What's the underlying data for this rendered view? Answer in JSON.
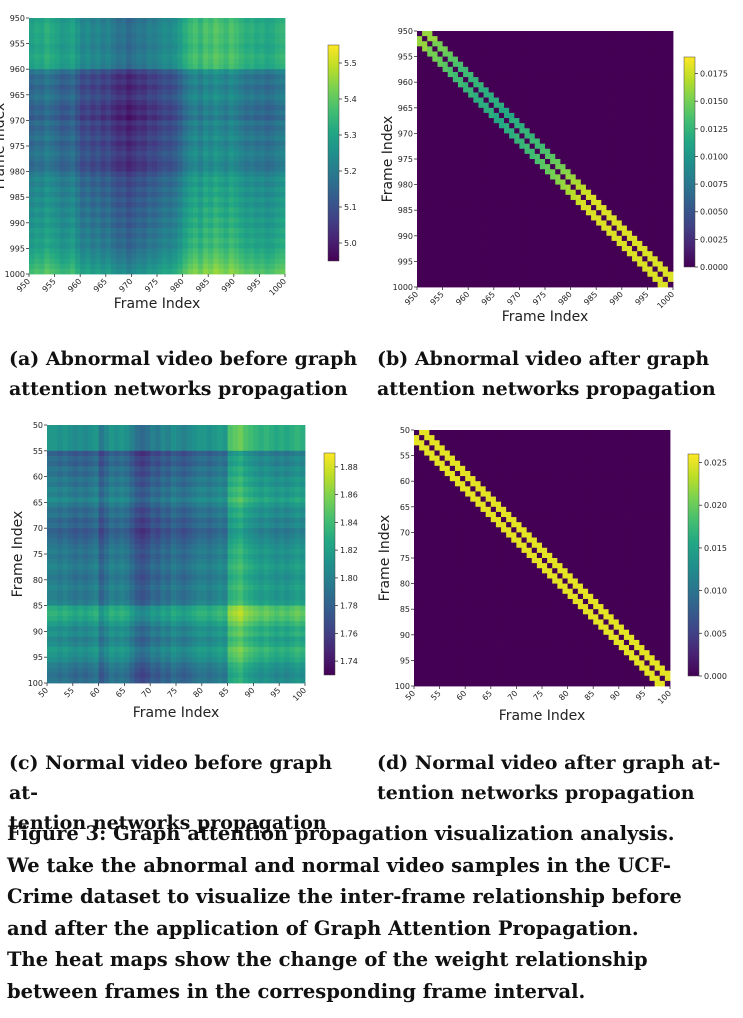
{
  "chart_data": [
    {
      "id": "a",
      "type": "heatmap",
      "xlabel": "Frame Index",
      "ylabel": "Frame Index",
      "range": [
        950,
        1000
      ],
      "x_ticks": [
        "950",
        "955",
        "960",
        "965",
        "970",
        "975",
        "980",
        "985",
        "990",
        "995",
        "1000"
      ],
      "y_ticks": [
        "950",
        "955",
        "960",
        "965",
        "970",
        "975",
        "980",
        "985",
        "990",
        "995",
        "1000"
      ],
      "colorbar": {
        "min": 4.95,
        "max": 5.55,
        "ticks": [
          "5.0",
          "5.1",
          "5.2",
          "5.3",
          "5.4",
          "5.5"
        ],
        "tick_values": [
          5.0,
          5.1,
          5.2,
          5.3,
          5.4,
          5.5
        ]
      },
      "pattern": "dense-striped",
      "row_profile": [
        5.3,
        5.33,
        5.34,
        5.32,
        5.33,
        5.3,
        5.32,
        5.35,
        5.33,
        5.31,
        5.1,
        5.02,
        5.06,
        5.0,
        5.04,
        5.08,
        5.03,
        4.98,
        5.02,
        4.96,
        5.05,
        5.0,
        5.04,
        5.08,
        5.02,
        5.06,
        5.1,
        5.07,
        5.03,
        5.05,
        5.12,
        5.18,
        5.14,
        5.2,
        5.16,
        5.22,
        5.18,
        5.24,
        5.2,
        5.26,
        5.22,
        5.28,
        5.25,
        5.3,
        5.27,
        5.32,
        5.35,
        5.38,
        5.42,
        5.46
      ],
      "col_profile": [
        5.26,
        5.3,
        5.28,
        5.34,
        5.3,
        5.27,
        5.22,
        5.24,
        5.28,
        5.2,
        5.12,
        5.16,
        5.1,
        5.14,
        5.08,
        5.12,
        5.06,
        5.02,
        5.04,
        4.98,
        5.02,
        5.06,
        5.04,
        5.1,
        5.08,
        5.12,
        5.16,
        5.14,
        5.18,
        5.24,
        5.32,
        5.38,
        5.42,
        5.36,
        5.44,
        5.4,
        5.46,
        5.42,
        5.38,
        5.44,
        5.4,
        5.36,
        5.32,
        5.34,
        5.3,
        5.32,
        5.28,
        5.3,
        5.34,
        5.36
      ]
    },
    {
      "id": "b",
      "type": "heatmap",
      "xlabel": "Frame Index",
      "ylabel": "Frame Index",
      "range": [
        950,
        1000
      ],
      "x_ticks": [
        "950",
        "955",
        "960",
        "965",
        "970",
        "975",
        "980",
        "985",
        "990",
        "995",
        "1000"
      ],
      "y_ticks": [
        "950",
        "955",
        "960",
        "965",
        "970",
        "975",
        "980",
        "985",
        "990",
        "995",
        "1000"
      ],
      "colorbar": {
        "min": 0,
        "max": 0.019,
        "ticks": [
          "0.0000",
          "0.0025",
          "0.0050",
          "0.0075",
          "0.0100",
          "0.0125",
          "0.0150",
          "0.0175"
        ],
        "tick_values": [
          0,
          0.0025,
          0.005,
          0.0075,
          0.01,
          0.0125,
          0.015,
          0.0175
        ]
      },
      "pattern": "band",
      "band_halfwidth": 2,
      "band_values": [
        0.016,
        0.016,
        0.015,
        0.015,
        0.0145,
        0.014,
        0.0135,
        0.013,
        0.013,
        0.0125,
        0.0125,
        0.012,
        0.012,
        0.012,
        0.012,
        0.0115,
        0.0115,
        0.012,
        0.012,
        0.0125,
        0.0125,
        0.013,
        0.013,
        0.0135,
        0.014,
        0.0145,
        0.015,
        0.0155,
        0.016,
        0.0165,
        0.017,
        0.0175,
        0.018,
        0.018,
        0.018,
        0.018,
        0.018,
        0.018,
        0.018,
        0.018,
        0.018,
        0.018,
        0.018,
        0.018,
        0.018,
        0.018,
        0.018,
        0.018,
        0.018,
        0.018
      ]
    },
    {
      "id": "c",
      "type": "heatmap",
      "xlabel": "Frame Index",
      "ylabel": "Frame Index",
      "range": [
        50,
        100
      ],
      "x_ticks": [
        "50",
        "55",
        "60",
        "65",
        "70",
        "75",
        "80",
        "85",
        "90",
        "95",
        "100"
      ],
      "y_ticks": [
        "50",
        "55",
        "60",
        "65",
        "70",
        "75",
        "80",
        "85",
        "90",
        "95",
        "100"
      ],
      "colorbar": {
        "min": 1.73,
        "max": 1.89,
        "ticks": [
          "1.74",
          "1.76",
          "1.78",
          "1.80",
          "1.82",
          "1.84",
          "1.86",
          "1.88"
        ],
        "tick_values": [
          1.74,
          1.76,
          1.78,
          1.8,
          1.82,
          1.84,
          1.86,
          1.88
        ]
      },
      "pattern": "striped",
      "row_profile": [
        1.83,
        1.83,
        1.83,
        1.83,
        1.83,
        1.76,
        1.78,
        1.77,
        1.79,
        1.78,
        1.8,
        1.79,
        1.81,
        1.8,
        1.82,
        1.8,
        1.78,
        1.79,
        1.77,
        1.78,
        1.76,
        1.77,
        1.78,
        1.79,
        1.8,
        1.79,
        1.8,
        1.81,
        1.8,
        1.79,
        1.8,
        1.81,
        1.8,
        1.8,
        1.81,
        1.86,
        1.87,
        1.86,
        1.84,
        1.82,
        1.83,
        1.81,
        1.82,
        1.84,
        1.83,
        1.82,
        1.8,
        1.79,
        1.78,
        1.79
      ],
      "col_profile": [
        1.8,
        1.8,
        1.79,
        1.8,
        1.79,
        1.78,
        1.79,
        1.78,
        1.79,
        1.8,
        1.76,
        1.78,
        1.8,
        1.79,
        1.8,
        1.79,
        1.77,
        1.75,
        1.74,
        1.75,
        1.77,
        1.76,
        1.78,
        1.77,
        1.79,
        1.78,
        1.77,
        1.78,
        1.79,
        1.8,
        1.8,
        1.79,
        1.8,
        1.81,
        1.8,
        1.86,
        1.87,
        1.88,
        1.86,
        1.85,
        1.84,
        1.83,
        1.84,
        1.83,
        1.82,
        1.83,
        1.82,
        1.83,
        1.84,
        1.83
      ]
    },
    {
      "id": "d",
      "type": "heatmap",
      "xlabel": "Frame Index",
      "ylabel": "Frame Index",
      "range": [
        50,
        100
      ],
      "x_ticks": [
        "50",
        "55",
        "60",
        "65",
        "70",
        "75",
        "80",
        "85",
        "90",
        "95",
        "100"
      ],
      "y_ticks": [
        "50",
        "55",
        "60",
        "65",
        "70",
        "75",
        "80",
        "85",
        "90",
        "95",
        "100"
      ],
      "colorbar": {
        "min": 0,
        "max": 0.026,
        "ticks": [
          "0.000",
          "0.005",
          "0.010",
          "0.015",
          "0.020",
          "0.025"
        ],
        "tick_values": [
          0,
          0.005,
          0.01,
          0.015,
          0.02,
          0.025
        ]
      },
      "pattern": "band",
      "band_halfwidth": 2,
      "band_values": [
        0.025,
        0.025,
        0.025,
        0.025,
        0.025,
        0.025,
        0.025,
        0.025,
        0.025,
        0.025,
        0.025,
        0.025,
        0.025,
        0.025,
        0.025,
        0.025,
        0.025,
        0.025,
        0.025,
        0.025,
        0.025,
        0.025,
        0.025,
        0.025,
        0.025,
        0.025,
        0.025,
        0.025,
        0.025,
        0.025,
        0.025,
        0.025,
        0.025,
        0.025,
        0.025,
        0.025,
        0.025,
        0.025,
        0.025,
        0.025,
        0.025,
        0.025,
        0.025,
        0.025,
        0.025,
        0.025,
        0.025,
        0.025,
        0.025,
        0.025
      ]
    }
  ],
  "captions": {
    "a_line1": "(a) Abnormal video before graph",
    "a_line2": "attention networks propagation",
    "b_line1": "(b) Abnormal video after graph",
    "b_line2": "attention networks propagation",
    "c_line1": "(c) Normal video before graph at-",
    "c_line2": "tention networks propagation",
    "d_line1": "(d) Normal video after graph at-",
    "d_line2": "tention networks propagation",
    "figure_lines": [
      "Figure 3: Graph attention propagation visualization analysis.",
      "We take the abnormal and normal video samples in the UCF-",
      "Crime dataset to visualize the inter-frame relationship before",
      "and after the application of Graph Attention Propagation.",
      "The heat maps show the change of the weight relationship",
      "between frames in the corresponding frame interval."
    ]
  },
  "colors": {
    "colormap": "viridis"
  }
}
